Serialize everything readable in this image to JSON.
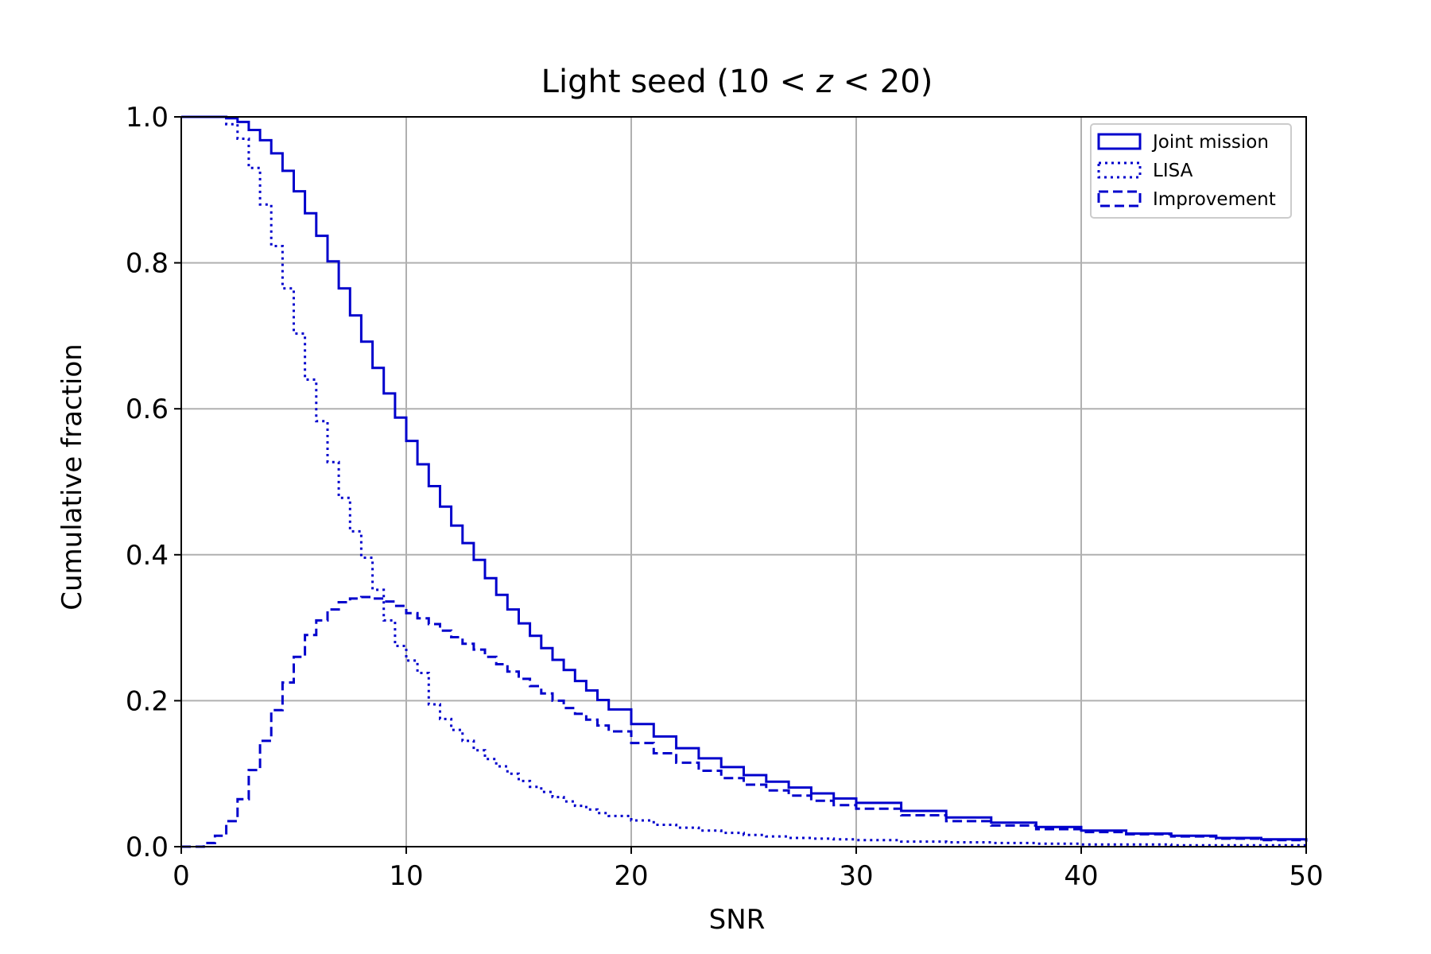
{
  "chart_data": {
    "type": "line",
    "title": "Light seed (10 < z < 20)",
    "title_parts": {
      "prefix": "Light seed (10",
      "lt1": "<",
      "z": "z",
      "lt2": "<",
      "suffix": "20)"
    },
    "xlabel": "SNR",
    "ylabel": "Cumulative fraction",
    "xlim": [
      0,
      50
    ],
    "ylim": [
      0,
      1
    ],
    "xticks": [
      0,
      10,
      20,
      30,
      40,
      50
    ],
    "xtick_labels": [
      "0",
      "10",
      "20",
      "30",
      "40",
      "50"
    ],
    "yticks": [
      0,
      0.2,
      0.4,
      0.6,
      0.8,
      1.0
    ],
    "ytick_labels": [
      "0.0",
      "0.2",
      "0.4",
      "0.6",
      "0.8",
      "1.0"
    ],
    "grid": true,
    "legend_position": "top-right",
    "step_width": 0.5,
    "series": [
      {
        "name": "Joint mission",
        "style": "solid",
        "color": "#0000cc",
        "x": [
          0,
          0.5,
          1,
          1.5,
          2,
          2.5,
          3,
          3.5,
          4,
          4.5,
          5,
          5.5,
          6,
          6.5,
          7,
          7.5,
          8,
          8.5,
          9,
          9.5,
          10,
          10.5,
          11,
          11.5,
          12,
          12.5,
          13,
          13.5,
          14,
          14.5,
          15,
          15.5,
          16,
          16.5,
          17,
          17.5,
          18,
          18.5,
          19,
          20,
          21,
          22,
          23,
          24,
          25,
          26,
          27,
          28,
          29,
          30,
          32,
          34,
          36,
          38,
          40,
          42,
          44,
          46,
          48,
          50
        ],
        "y": [
          1.0,
          1.0,
          1.0,
          1.0,
          0.998,
          0.993,
          0.982,
          0.968,
          0.95,
          0.926,
          0.898,
          0.868,
          0.837,
          0.802,
          0.765,
          0.728,
          0.692,
          0.656,
          0.621,
          0.588,
          0.556,
          0.524,
          0.494,
          0.466,
          0.44,
          0.416,
          0.393,
          0.368,
          0.345,
          0.325,
          0.306,
          0.289,
          0.272,
          0.256,
          0.242,
          0.227,
          0.214,
          0.201,
          0.188,
          0.168,
          0.151,
          0.135,
          0.121,
          0.109,
          0.098,
          0.089,
          0.081,
          0.073,
          0.066,
          0.06,
          0.049,
          0.04,
          0.033,
          0.027,
          0.022,
          0.018,
          0.015,
          0.012,
          0.01,
          0.008
        ]
      },
      {
        "name": "LISA",
        "style": "dotted",
        "color": "#0000cc",
        "x": [
          0,
          0.5,
          1,
          1.5,
          2,
          2.5,
          3,
          3.5,
          4,
          4.5,
          5,
          5.5,
          6,
          6.5,
          7,
          7.5,
          8,
          8.5,
          9,
          9.5,
          10,
          10.5,
          11,
          11.5,
          12,
          12.5,
          13,
          13.5,
          14,
          14.5,
          15,
          15.5,
          16,
          16.5,
          17,
          17.5,
          18,
          18.5,
          19,
          20,
          21,
          22,
          23,
          24,
          25,
          26,
          27,
          28,
          29,
          30,
          32,
          34,
          36,
          38,
          40,
          42,
          44,
          46,
          48,
          50
        ],
        "y": [
          1.0,
          1.0,
          1.0,
          1.0,
          0.99,
          0.97,
          0.93,
          0.88,
          0.823,
          0.765,
          0.703,
          0.64,
          0.583,
          0.527,
          0.478,
          0.432,
          0.396,
          0.352,
          0.31,
          0.275,
          0.255,
          0.238,
          0.195,
          0.175,
          0.16,
          0.145,
          0.132,
          0.12,
          0.11,
          0.1,
          0.09,
          0.082,
          0.075,
          0.068,
          0.062,
          0.056,
          0.051,
          0.046,
          0.042,
          0.036,
          0.03,
          0.026,
          0.022,
          0.019,
          0.016,
          0.014,
          0.012,
          0.011,
          0.01,
          0.009,
          0.007,
          0.006,
          0.005,
          0.004,
          0.003,
          0.003,
          0.002,
          0.002,
          0.002,
          0.002
        ]
      },
      {
        "name": "Improvement",
        "style": "dashed",
        "color": "#0000cc",
        "x": [
          0,
          0.5,
          1,
          1.5,
          2,
          2.5,
          3,
          3.5,
          4,
          4.5,
          5,
          5.5,
          6,
          6.5,
          7,
          7.5,
          8,
          8.5,
          9,
          9.5,
          10,
          10.5,
          11,
          11.5,
          12,
          12.5,
          13,
          13.5,
          14,
          14.5,
          15,
          15.5,
          16,
          16.5,
          17,
          17.5,
          18,
          18.5,
          19,
          20,
          21,
          22,
          23,
          24,
          25,
          26,
          27,
          28,
          29,
          30,
          32,
          34,
          36,
          38,
          40,
          42,
          44,
          46,
          48,
          50
        ],
        "y": [
          0.0,
          0.0,
          0.005,
          0.015,
          0.035,
          0.065,
          0.105,
          0.145,
          0.187,
          0.225,
          0.26,
          0.29,
          0.31,
          0.325,
          0.335,
          0.34,
          0.342,
          0.34,
          0.336,
          0.33,
          0.32,
          0.313,
          0.305,
          0.296,
          0.287,
          0.278,
          0.27,
          0.26,
          0.25,
          0.24,
          0.23,
          0.22,
          0.21,
          0.2,
          0.19,
          0.182,
          0.174,
          0.166,
          0.158,
          0.142,
          0.128,
          0.115,
          0.104,
          0.094,
          0.085,
          0.077,
          0.07,
          0.063,
          0.057,
          0.052,
          0.043,
          0.035,
          0.029,
          0.024,
          0.02,
          0.017,
          0.014,
          0.011,
          0.009,
          0.007
        ]
      }
    ]
  }
}
